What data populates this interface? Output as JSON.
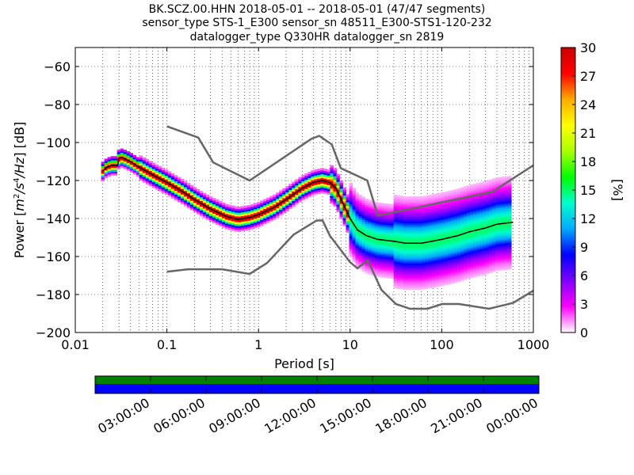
{
  "title_lines": [
    "BK.SCZ.00.HHN   2018-05-01 -- 2018-05-01  (47/47 segments)",
    "sensor_type STS-1_E300 sensor_sn 48511_E300-STS1-120-232",
    "datalogger_type Q330HR datalogger_sn 2819"
  ],
  "chart_data": {
    "type": "heatmap",
    "subtype": "probabilistic power spectral density",
    "xlabel": "Period [s]",
    "ylabel": "Power [$m^2/s^4/Hz$] [dB]",
    "ylabel_parts": [
      "Power [",
      "m",
      "2",
      "/s",
      "4",
      "/Hz",
      "] [dB]"
    ],
    "x_scale": "log",
    "xlim": [
      0.01,
      1000
    ],
    "ylim": [
      -200,
      -50
    ],
    "x_ticks": [
      0.01,
      0.1,
      1,
      10,
      100,
      1000
    ],
    "x_tick_labels": [
      "0.01",
      "0.1",
      "1",
      "10",
      "100",
      "1000"
    ],
    "y_ticks": [
      -200,
      -180,
      -160,
      -140,
      -120,
      -100,
      -80,
      -60
    ],
    "y_tick_labels": [
      "−200",
      "−180",
      "−160",
      "−140",
      "−120",
      "−100",
      "−80",
      "−60"
    ],
    "grid": true,
    "colorbar": {
      "label": "[%]",
      "range": [
        0,
        30
      ],
      "ticks": [
        0,
        3,
        6,
        9,
        12,
        15,
        18,
        21,
        24,
        27,
        30
      ],
      "tick_labels": [
        "0",
        "3",
        "6",
        "9",
        "12",
        "15",
        "18",
        "21",
        "24",
        "27",
        "30"
      ],
      "colormap": [
        "#ffffff",
        "#ff00ff",
        "#8000ff",
        "#0000ff",
        "#00aaff",
        "#00ffcc",
        "#00ff00",
        "#aaff00",
        "#ffff00",
        "#ffaa00",
        "#ff0000",
        "#cc0000"
      ]
    },
    "noise_models": {
      "color": "#666666",
      "high_noise": [
        [
          0.1,
          -91.5
        ],
        [
          0.22,
          -97.4
        ],
        [
          0.32,
          -110.5
        ],
        [
          0.8,
          -120
        ],
        [
          3.8,
          -98
        ],
        [
          4.6,
          -96.5
        ],
        [
          6.3,
          -101
        ],
        [
          7.9,
          -113.5
        ],
        [
          15.4,
          -120
        ],
        [
          20,
          -138.5
        ],
        [
          354.8,
          -126
        ],
        [
          1000,
          -112
        ]
      ],
      "low_noise": [
        [
          0.1,
          -168
        ],
        [
          0.17,
          -166.7
        ],
        [
          0.4,
          -166.7
        ],
        [
          0.8,
          -169.2
        ],
        [
          1.24,
          -163.4
        ],
        [
          2.4,
          -148.6
        ],
        [
          4.3,
          -141.1
        ],
        [
          5,
          -141
        ],
        [
          6,
          -149
        ],
        [
          10,
          -163
        ],
        [
          12,
          -166.2
        ],
        [
          15.6,
          -162
        ],
        [
          21.9,
          -177.5
        ],
        [
          31.6,
          -185
        ],
        [
          45,
          -187.5
        ],
        [
          70,
          -187.5
        ],
        [
          101,
          -185
        ],
        [
          154,
          -185
        ],
        [
          328,
          -187.5
        ],
        [
          600,
          -184.4
        ],
        [
          1000,
          -178
        ]
      ]
    },
    "mode_curve": {
      "color": "#000000",
      "points": [
        [
          0.02,
          -115
        ],
        [
          0.022,
          -113
        ],
        [
          0.025,
          -112
        ],
        [
          0.029,
          -112
        ],
        [
          0.03,
          -108
        ],
        [
          0.033,
          -108
        ],
        [
          0.04,
          -110
        ],
        [
          0.05,
          -113
        ],
        [
          0.07,
          -117
        ],
        [
          0.1,
          -121
        ],
        [
          0.15,
          -126
        ],
        [
          0.2,
          -130
        ],
        [
          0.3,
          -135
        ],
        [
          0.45,
          -139
        ],
        [
          0.6,
          -140.5
        ],
        [
          0.8,
          -139.5
        ],
        [
          1,
          -138
        ],
        [
          1.5,
          -134
        ],
        [
          2,
          -130
        ],
        [
          3,
          -124
        ],
        [
          4,
          -121
        ],
        [
          5,
          -120
        ],
        [
          6,
          -121
        ],
        [
          7,
          -124
        ],
        [
          8,
          -130
        ],
        [
          10,
          -140
        ],
        [
          12,
          -146
        ],
        [
          15,
          -149
        ],
        [
          20,
          -151
        ],
        [
          30,
          -152
        ],
        [
          40,
          -153
        ],
        [
          60,
          -153
        ],
        [
          100,
          -151
        ],
        [
          150,
          -149
        ],
        [
          200,
          -147
        ],
        [
          300,
          -145
        ],
        [
          400,
          -143
        ],
        [
          600,
          -142
        ]
      ]
    }
  },
  "time_panel": {
    "top_color": "#008000",
    "bottom_color": "#0000ff",
    "tick_labels": [
      "03:00:00",
      "06:00:00",
      "09:00:00",
      "12:00:00",
      "15:00:00",
      "18:00:00",
      "21:00:00",
      "00:00:00"
    ]
  }
}
